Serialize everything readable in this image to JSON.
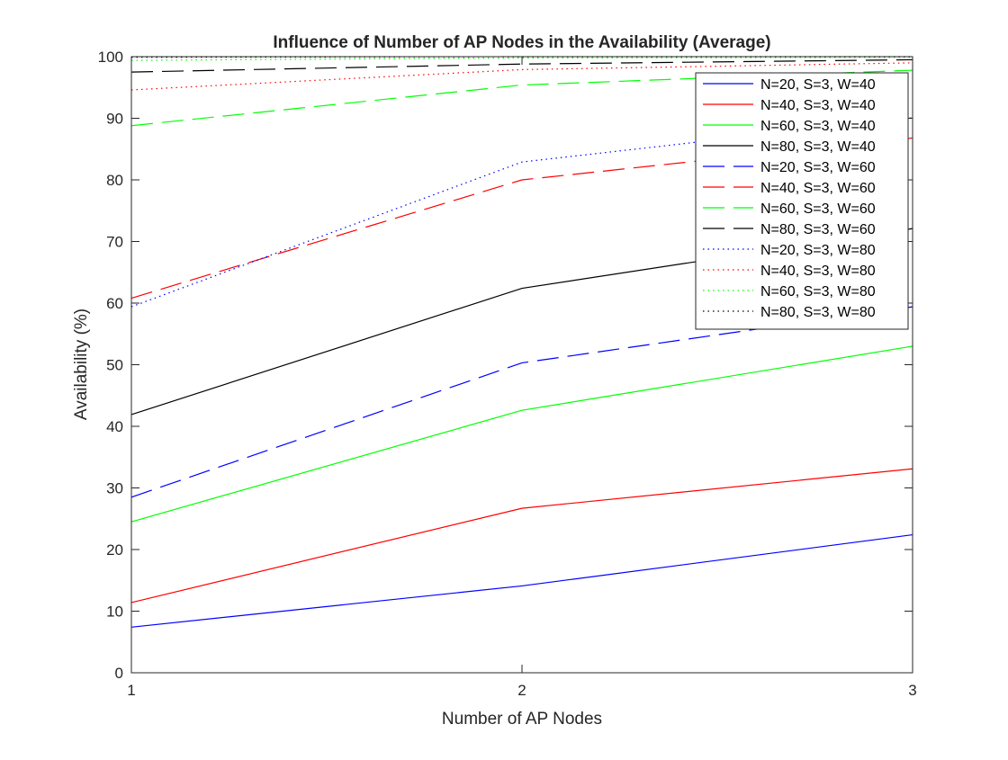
{
  "chart_data": {
    "type": "line",
    "title": "Influence of Number of AP Nodes in the Availability (Average)",
    "xlabel": "Number of AP Nodes",
    "ylabel": "Availability (%)",
    "x": [
      1,
      2,
      3
    ],
    "xlim": [
      1,
      3
    ],
    "ylim": [
      0,
      100
    ],
    "xticks": [
      1,
      2,
      3
    ],
    "yticks": [
      0,
      10,
      20,
      30,
      40,
      50,
      60,
      70,
      80,
      90,
      100
    ],
    "xtick_labels": [
      "1",
      "2",
      "3"
    ],
    "ytick_labels": [
      "0",
      "10",
      "20",
      "30",
      "40",
      "50",
      "60",
      "70",
      "80",
      "90",
      "100"
    ],
    "grid": false,
    "legend_position": "top-right",
    "series": [
      {
        "name": "N=20, S=3, W=40",
        "values": [
          7.4,
          14.1,
          22.4
        ],
        "color": "#0000ff",
        "style": "solid"
      },
      {
        "name": "N=40, S=3, W=40",
        "values": [
          11.4,
          26.7,
          33.1
        ],
        "color": "#ff0000",
        "style": "solid"
      },
      {
        "name": "N=60, S=3, W=40",
        "values": [
          24.5,
          42.6,
          53.0
        ],
        "color": "#00ff00",
        "style": "solid"
      },
      {
        "name": "N=80, S=3, W=40",
        "values": [
          41.9,
          62.4,
          72.1
        ],
        "color": "#000000",
        "style": "solid"
      },
      {
        "name": "N=20, S=3, W=60",
        "values": [
          28.5,
          50.3,
          59.4
        ],
        "color": "#0000ff",
        "style": "dashed"
      },
      {
        "name": "N=40, S=3, W=60",
        "values": [
          60.8,
          80.0,
          86.8
        ],
        "color": "#ff0000",
        "style": "dashed"
      },
      {
        "name": "N=60, S=3, W=60",
        "values": [
          88.8,
          95.4,
          97.8
        ],
        "color": "#00ff00",
        "style": "dashed"
      },
      {
        "name": "N=80, S=3, W=60",
        "values": [
          97.5,
          98.8,
          99.5
        ],
        "color": "#000000",
        "style": "dashed"
      },
      {
        "name": "N=20, S=3, W=80",
        "values": [
          59.4,
          82.9,
          90.1
        ],
        "color": "#0000ff",
        "style": "dotted"
      },
      {
        "name": "N=40, S=3, W=80",
        "values": [
          94.6,
          97.9,
          99.0
        ],
        "color": "#ff0000",
        "style": "dotted"
      },
      {
        "name": "N=60, S=3, W=80",
        "values": [
          99.4,
          99.8,
          99.9
        ],
        "color": "#00ff00",
        "style": "dotted"
      },
      {
        "name": "N=80, S=3, W=80",
        "values": [
          99.9,
          100.0,
          100.0
        ],
        "color": "#000000",
        "style": "dotted"
      }
    ]
  }
}
